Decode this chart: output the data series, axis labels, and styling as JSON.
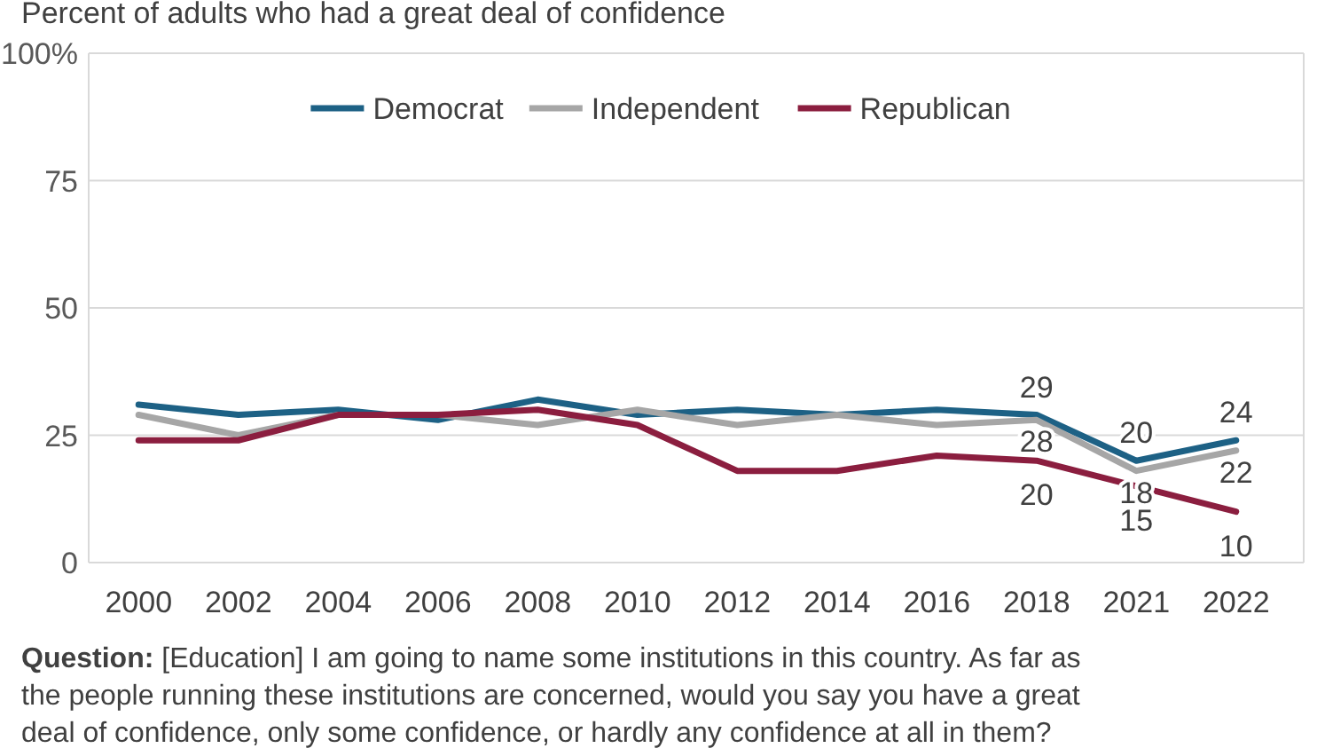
{
  "chart_data": {
    "type": "line",
    "title": "Percent of adults who had a great deal of confidence",
    "categories": [
      "2000",
      "2002",
      "2004",
      "2006",
      "2008",
      "2010",
      "2012",
      "2014",
      "2016",
      "2018",
      "2021",
      "2022"
    ],
    "series": [
      {
        "name": "Democrat",
        "color": "#1d6185",
        "values": [
          31,
          29,
          30,
          28,
          32,
          29,
          30,
          29,
          30,
          29,
          20,
          24
        ],
        "value_labels": [
          null,
          null,
          null,
          null,
          null,
          null,
          null,
          null,
          null,
          "29",
          "20",
          "24"
        ]
      },
      {
        "name": "Independent",
        "color": "#a6a6a6",
        "values": [
          29,
          25,
          29,
          29,
          27,
          30,
          27,
          29,
          27,
          28,
          18,
          22
        ],
        "value_labels": [
          null,
          null,
          null,
          null,
          null,
          null,
          null,
          null,
          null,
          "28",
          "18",
          "22"
        ]
      },
      {
        "name": "Republican",
        "color": "#8b1e3f",
        "values": [
          24,
          24,
          29,
          29,
          30,
          27,
          18,
          18,
          21,
          20,
          15,
          10
        ],
        "value_labels": [
          null,
          null,
          null,
          null,
          null,
          null,
          null,
          null,
          null,
          "20",
          "15",
          "10"
        ]
      }
    ],
    "ylim": [
      0,
      100
    ],
    "yticks": [
      {
        "value": 100,
        "label": "100%"
      },
      75,
      50,
      25,
      0
    ],
    "grid": "y",
    "legend": "top",
    "marker": "none",
    "annotations": [
      "Question: [Education] I am going to name some institutions in this country. As far as the people running these institutions are concerned, would you say you have a great deal of confidence, only some confidence, or hardly any confidence at all in them?"
    ]
  }
}
